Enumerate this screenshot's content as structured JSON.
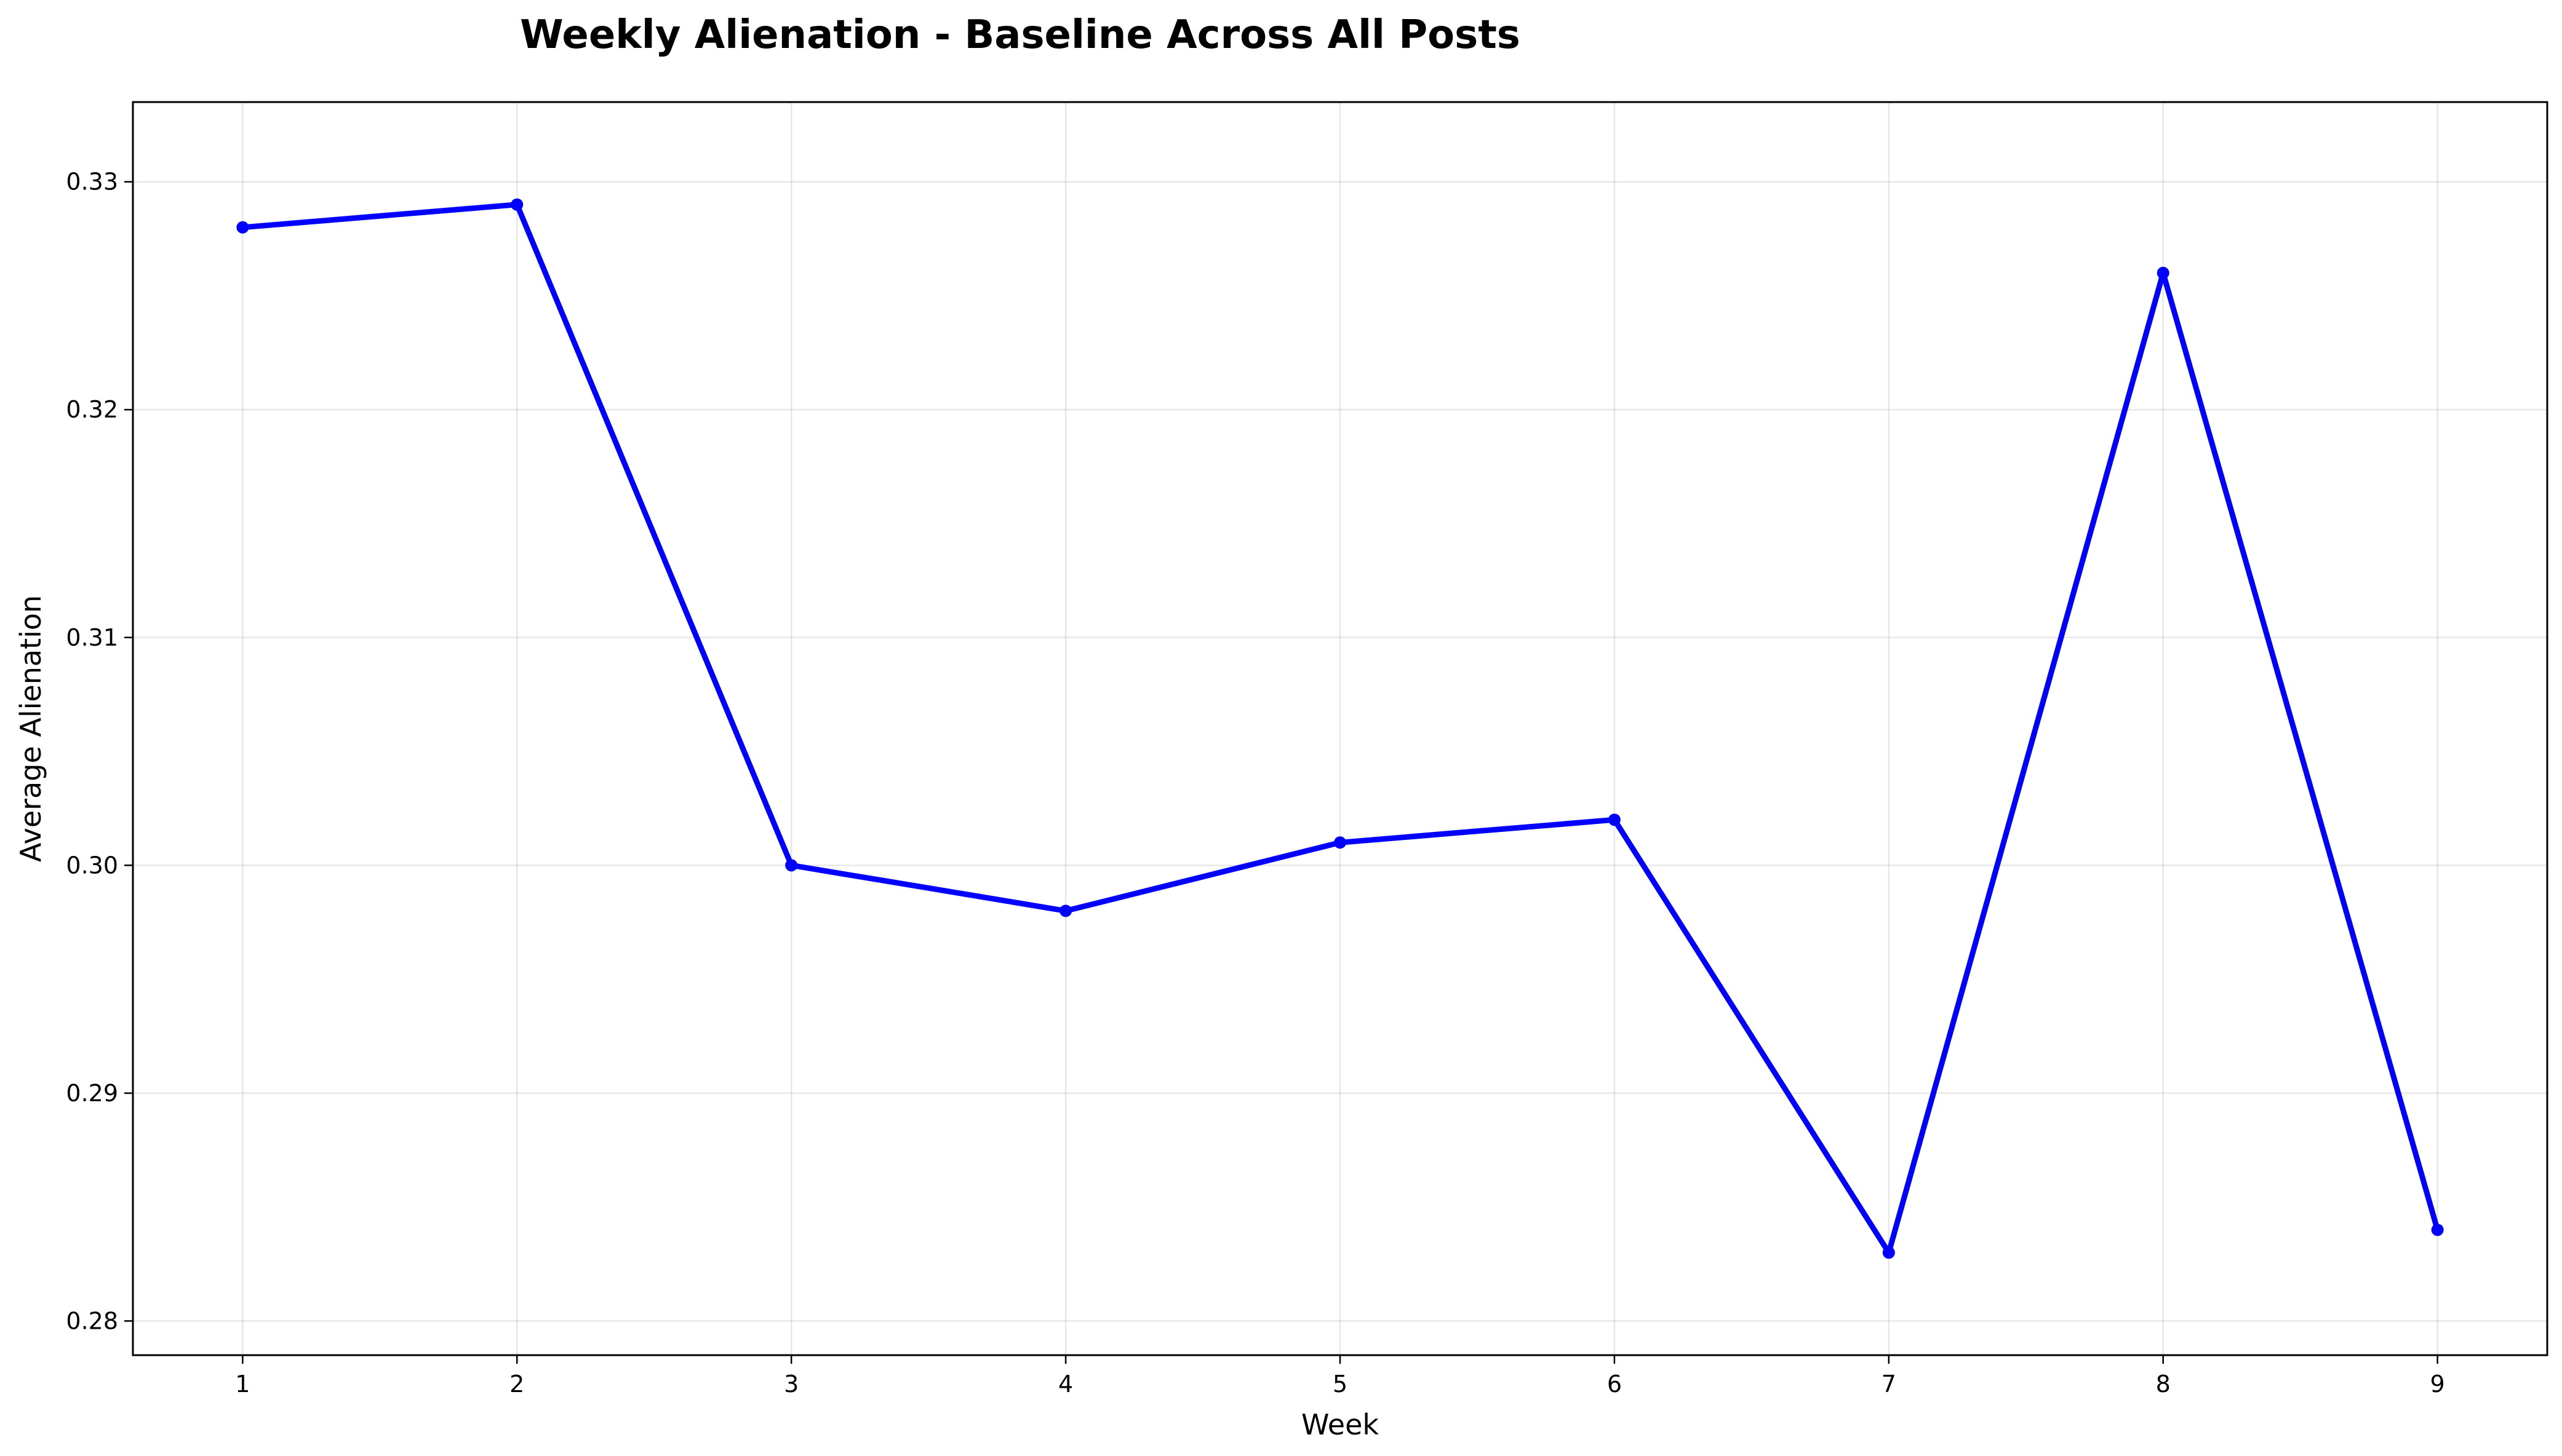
{
  "chart_data": {
    "type": "line",
    "title": "Weekly Alienation - Baseline Across All Posts",
    "xlabel": "Week",
    "ylabel": "Average Alienation",
    "x": [
      1,
      2,
      3,
      4,
      5,
      6,
      7,
      8,
      9
    ],
    "series": [
      {
        "values": [
          0.328,
          0.329,
          0.3,
          0.298,
          0.301,
          0.302,
          0.283,
          0.326,
          0.284
        ],
        "color": "#0000ff",
        "marker": "circle"
      }
    ],
    "xlim": [
      0.6,
      9.4
    ],
    "ylim": [
      0.2785,
      0.3335
    ],
    "xticks": [
      1,
      2,
      3,
      4,
      5,
      6,
      7,
      8,
      9
    ],
    "xtick_labels": [
      "1",
      "2",
      "3",
      "4",
      "5",
      "6",
      "7",
      "8",
      "9"
    ],
    "yticks": [
      0.28,
      0.29,
      0.3,
      0.31,
      0.32,
      0.33
    ],
    "ytick_labels": [
      "0.28",
      "0.29",
      "0.30",
      "0.31",
      "0.32",
      "0.33"
    ],
    "grid": true,
    "legend": "none"
  }
}
